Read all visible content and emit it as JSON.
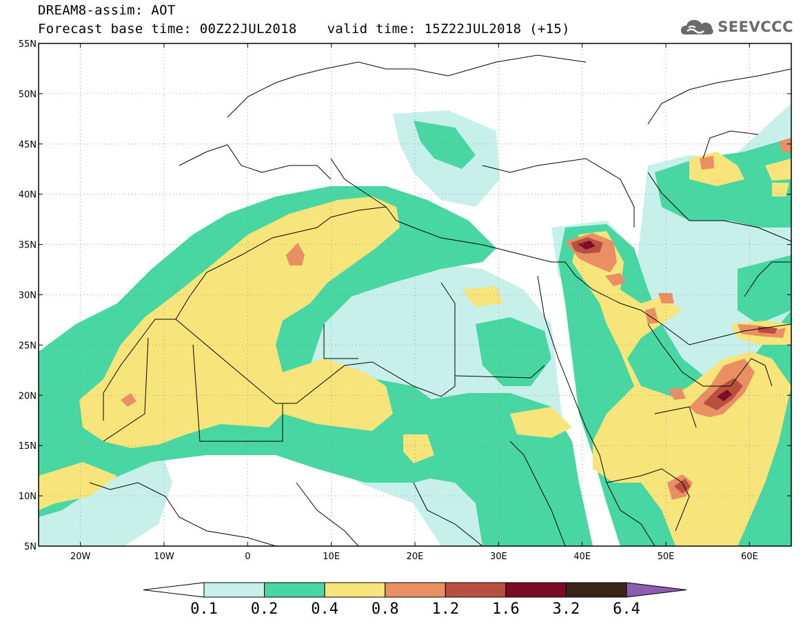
{
  "header": {
    "title": "DREAM8-assim: AOT",
    "base_time_label": "Forecast base time: 00Z22JUL2018",
    "valid_time_label": "valid time: 15Z22JUL2018 (+15)"
  },
  "logo": {
    "text": "SEEVCCC",
    "icon": "cloud-logo-icon"
  },
  "map": {
    "lon_range": [
      -25,
      65
    ],
    "lat_range": [
      5,
      55
    ],
    "lon_ticks": [
      {
        "value": -20,
        "label": "20W"
      },
      {
        "value": -10,
        "label": "10W"
      },
      {
        "value": 0,
        "label": "0"
      },
      {
        "value": 10,
        "label": "10E"
      },
      {
        "value": 20,
        "label": "20E"
      },
      {
        "value": 30,
        "label": "30E"
      },
      {
        "value": 40,
        "label": "40E"
      },
      {
        "value": 50,
        "label": "50E"
      },
      {
        "value": 60,
        "label": "60E"
      }
    ],
    "lat_ticks": [
      {
        "value": 55,
        "label": "55N"
      },
      {
        "value": 50,
        "label": "50N"
      },
      {
        "value": 45,
        "label": "45N"
      },
      {
        "value": 40,
        "label": "40N"
      },
      {
        "value": 35,
        "label": "35N"
      },
      {
        "value": 30,
        "label": "30N"
      },
      {
        "value": 25,
        "label": "25N"
      },
      {
        "value": 20,
        "label": "20N"
      },
      {
        "value": 15,
        "label": "15N"
      },
      {
        "value": 10,
        "label": "10N"
      },
      {
        "value": 5,
        "label": "5N"
      }
    ],
    "grid": "dotted"
  },
  "colorbar": {
    "colors": [
      "#ffffff",
      "#c6f0e9",
      "#48d6a2",
      "#f7e47a",
      "#ea8f64",
      "#b84f3f",
      "#7c0b25",
      "#3b2518",
      "#8d5cb0"
    ],
    "labels": [
      "0.1",
      "0.2",
      "0.4",
      "0.8",
      "1.2",
      "1.6",
      "3.2",
      "6.4"
    ]
  }
}
